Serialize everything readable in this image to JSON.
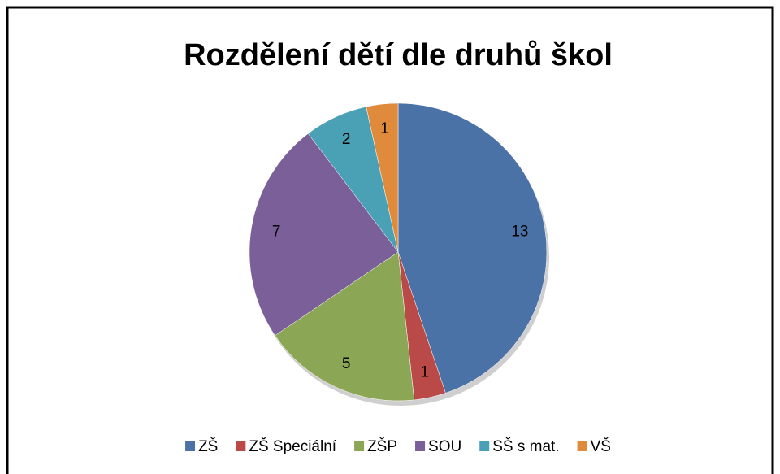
{
  "chart_data": {
    "type": "pie",
    "title": "Rozdělení dětí dle druhů škol",
    "categories": [
      "ZŠ",
      "ZŠ Speciální",
      "ZŠP",
      "SOU",
      "SŠ s mat.",
      "VŠ"
    ],
    "values": [
      13,
      1,
      5,
      7,
      2,
      1
    ],
    "colors": [
      "#4a72a6",
      "#b94a48",
      "#8ba654",
      "#7a5f99",
      "#4aa0b5",
      "#e08a3c"
    ],
    "legend": "bottom"
  }
}
